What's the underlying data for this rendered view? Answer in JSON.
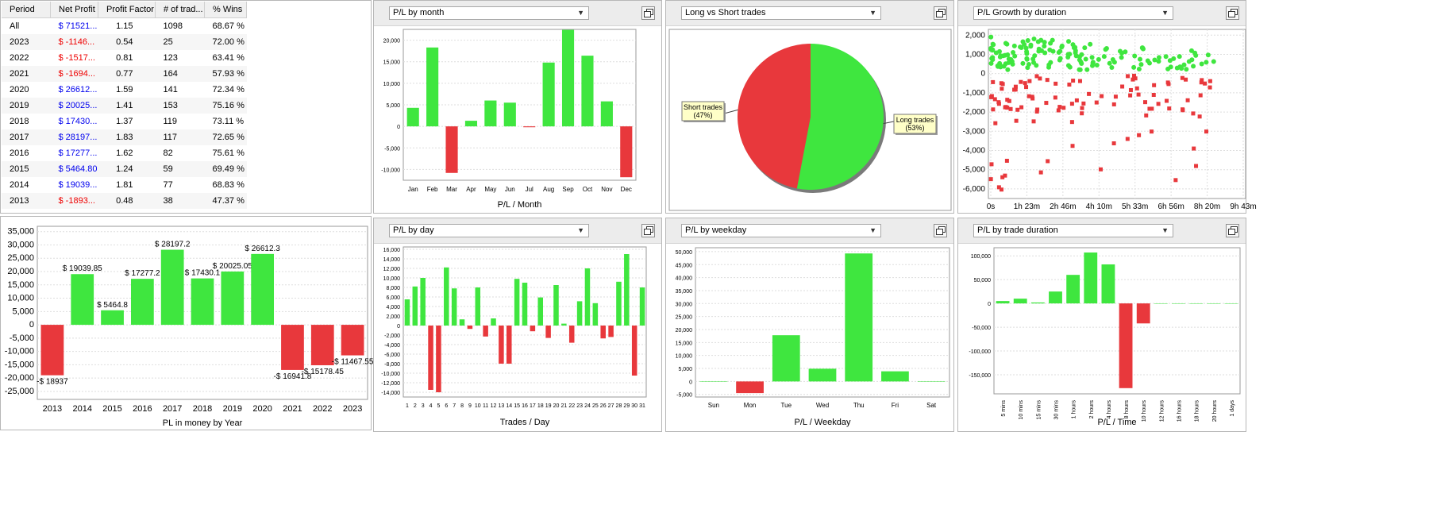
{
  "colors": {
    "positive": "#3fe63f",
    "negative": "#e8383c",
    "profit_text": "#0000ee",
    "loss_text": "#ee0000"
  },
  "icons": {
    "dropdown": "chevron-down-icon",
    "window": "window-maximize-icon"
  },
  "table": {
    "columns": [
      "Period",
      "Net Profit",
      "Profit Factor",
      "# of trad...",
      "% Wins"
    ],
    "rows": [
      {
        "period": "All",
        "net": "$ 71521...",
        "pf": "1.15",
        "trades": "1098",
        "wins": "68.67 %",
        "sign": "pos"
      },
      {
        "period": "2023",
        "net": "$ -1146...",
        "pf": "0.54",
        "trades": "25",
        "wins": "72.00 %",
        "sign": "neg"
      },
      {
        "period": "2022",
        "net": "$ -1517...",
        "pf": "0.81",
        "trades": "123",
        "wins": "63.41 %",
        "sign": "neg"
      },
      {
        "period": "2021",
        "net": "$ -1694...",
        "pf": "0.77",
        "trades": "164",
        "wins": "57.93 %",
        "sign": "neg"
      },
      {
        "period": "2020",
        "net": "$ 26612...",
        "pf": "1.59",
        "trades": "141",
        "wins": "72.34 %",
        "sign": "pos"
      },
      {
        "period": "2019",
        "net": "$ 20025...",
        "pf": "1.41",
        "trades": "153",
        "wins": "75.16 %",
        "sign": "pos"
      },
      {
        "period": "2018",
        "net": "$ 17430...",
        "pf": "1.37",
        "trades": "119",
        "wins": "73.11 %",
        "sign": "pos"
      },
      {
        "period": "2017",
        "net": "$ 28197...",
        "pf": "1.83",
        "trades": "117",
        "wins": "72.65 %",
        "sign": "pos"
      },
      {
        "period": "2016",
        "net": "$ 17277...",
        "pf": "1.62",
        "trades": "82",
        "wins": "75.61 %",
        "sign": "pos"
      },
      {
        "period": "2015",
        "net": "$ 5464.80",
        "pf": "1.24",
        "trades": "59",
        "wins": "69.49 %",
        "sign": "pos"
      },
      {
        "period": "2014",
        "net": "$ 19039...",
        "pf": "1.81",
        "trades": "77",
        "wins": "68.83 %",
        "sign": "pos"
      },
      {
        "period": "2013",
        "net": "$ -1893...",
        "pf": "0.48",
        "trades": "38",
        "wins": "47.37 %",
        "sign": "neg"
      }
    ]
  },
  "panels": {
    "month": {
      "selector": "P/L by month"
    },
    "longshort": {
      "selector": "Long vs Short trades"
    },
    "growth": {
      "selector": "P/L Growth by duration"
    },
    "day": {
      "selector": "P/L by day"
    },
    "weekday": {
      "selector": "P/L by weekday"
    },
    "tradeduration": {
      "selector": "P/L by trade duration"
    }
  },
  "chart_data": [
    {
      "id": "month",
      "type": "bar",
      "xlabel": "P/L / Month",
      "categories": [
        "Jan",
        "Feb",
        "Mar",
        "Apr",
        "May",
        "Jun",
        "Jul",
        "Aug",
        "Sep",
        "Oct",
        "Nov",
        "Dec"
      ],
      "values": [
        4300,
        18300,
        -10800,
        1300,
        6000,
        5500,
        -200,
        14800,
        22400,
        16400,
        5800,
        -11800
      ],
      "ylim": [
        -12500,
        22500
      ],
      "yticks": [
        -10000,
        -5000,
        0,
        5000,
        10000,
        15000,
        20000
      ],
      "ytick_labels": [
        "-10,000",
        "-5,000",
        "0",
        "5,000",
        "10,000",
        "15,000",
        "20,000"
      ]
    },
    {
      "id": "longshort",
      "type": "pie",
      "slices": [
        {
          "name": "Long trades",
          "label": "Long trades",
          "pct_label": "(53%)",
          "value": 53
        },
        {
          "name": "Short trades",
          "label": "Short trades",
          "pct_label": "(47%)",
          "value": 47
        }
      ]
    },
    {
      "id": "growth",
      "type": "scatter",
      "xtick_labels": [
        "0s",
        "1h 23m",
        "2h 46m",
        "4h 10m",
        "5h 33m",
        "6h 56m",
        "8h 20m",
        "9h 43m"
      ],
      "ylim": [
        -6500,
        2300
      ],
      "yticks": [
        -6000,
        -5000,
        -4000,
        -3000,
        -2000,
        -1000,
        0,
        1000,
        2000
      ],
      "ytick_labels": [
        "-6,000",
        "-5,000",
        "-4,000",
        "-3,000",
        "-2,000",
        "-1,000",
        "0",
        "1,000",
        "2,000"
      ],
      "point_count": 1098
    },
    {
      "id": "year",
      "type": "bar",
      "xlabel": "PL in money by Year",
      "categories": [
        "2013",
        "2014",
        "2015",
        "2016",
        "2017",
        "2018",
        "2019",
        "2020",
        "2021",
        "2022",
        "2023"
      ],
      "values": [
        -18937,
        19039.85,
        5464.8,
        17277.2,
        28197.2,
        17430.1,
        20025.05,
        26612.3,
        -16941.8,
        -15178.45,
        -11467.55
      ],
      "data_labels": [
        "-$ 18937",
        "$ 19039.85",
        "$ 5464.8",
        "$ 17277.2",
        "$ 28197.2",
        "$ 17430.1",
        "$ 20025.05",
        "$ 26612.3",
        "-$ 16941.8",
        "-$ 15178.45",
        "-$ 11467.55"
      ],
      "ylim": [
        -28000,
        37000
      ],
      "yticks": [
        -25000,
        -20000,
        -15000,
        -10000,
        -5000,
        0,
        5000,
        10000,
        15000,
        20000,
        25000,
        30000,
        35000
      ],
      "ytick_labels": [
        "-25,000",
        "-20,000",
        "-15,000",
        "-10,000",
        "-5,000",
        "0",
        "5,000",
        "10,000",
        "15,000",
        "20,000",
        "25,000",
        "30,000",
        "35,000"
      ]
    },
    {
      "id": "day",
      "type": "bar",
      "xlabel": "Trades / Day",
      "categories": [
        "1",
        "2",
        "3",
        "4",
        "5",
        "6",
        "7",
        "8",
        "9",
        "10",
        "11",
        "12",
        "13",
        "14",
        "15",
        "16",
        "17",
        "18",
        "19",
        "20",
        "21",
        "22",
        "23",
        "24",
        "25",
        "26",
        "27",
        "28",
        "29",
        "30",
        "31"
      ],
      "values": [
        5500,
        8200,
        10000,
        -13500,
        -14000,
        12200,
        7800,
        1300,
        -700,
        8000,
        -2300,
        1500,
        -8000,
        -8000,
        9800,
        9000,
        -1200,
        5900,
        -2600,
        8500,
        400,
        -3600,
        5100,
        12000,
        4700,
        -2700,
        -2400,
        9200,
        15000,
        -10500,
        8000
      ],
      "ylim": [
        -15000,
        16500
      ],
      "yticks": [
        -14000,
        -12000,
        -10000,
        -8000,
        -6000,
        -4000,
        -2000,
        0,
        2000,
        4000,
        6000,
        8000,
        10000,
        12000,
        14000,
        16000
      ],
      "ytick_labels": [
        "-14,000",
        "-12,000",
        "-10,000",
        "-8,000",
        "-6,000",
        "-4,000",
        "-2,000",
        "0",
        "2,000",
        "4,000",
        "6,000",
        "8,000",
        "10,000",
        "12,000",
        "14,000",
        "16,000"
      ]
    },
    {
      "id": "weekday",
      "type": "bar",
      "xlabel": "P/L / Weekday",
      "categories": [
        "Sun",
        "Mon",
        "Tue",
        "Wed",
        "Thu",
        "Fri",
        "Sat"
      ],
      "values": [
        0,
        -4500,
        17800,
        4900,
        49300,
        3900,
        0
      ],
      "ylim": [
        -6000,
        51500
      ],
      "yticks": [
        -5000,
        0,
        5000,
        10000,
        15000,
        20000,
        25000,
        30000,
        35000,
        40000,
        45000,
        50000
      ],
      "ytick_labels": [
        "-5,000",
        "0",
        "5,000",
        "10,000",
        "15,000",
        "20,000",
        "25,000",
        "30,000",
        "35,000",
        "40,000",
        "45,000",
        "50,000"
      ]
    },
    {
      "id": "tradeduration",
      "type": "bar",
      "xlabel": "P/L / Time",
      "categories": [
        "5 mins",
        "10 mins",
        "15 mins",
        "30 mins",
        "1 hours",
        "2 hours",
        "4 hours",
        "8 hours",
        "10 hours",
        "12 hours",
        "16 hours",
        "18 hours",
        "20 hours",
        "1 days"
      ],
      "values": [
        5000,
        10000,
        2000,
        25000,
        60000,
        107000,
        82000,
        -178000,
        -42000,
        0,
        0,
        0,
        0,
        0
      ],
      "ylim": [
        -190000,
        117000
      ],
      "yticks": [
        -150000,
        -100000,
        -50000,
        0,
        50000,
        100000
      ],
      "ytick_labels": [
        "-150,000",
        "-100,000",
        "-50,000",
        "0",
        "50,000",
        "100,000"
      ]
    }
  ]
}
